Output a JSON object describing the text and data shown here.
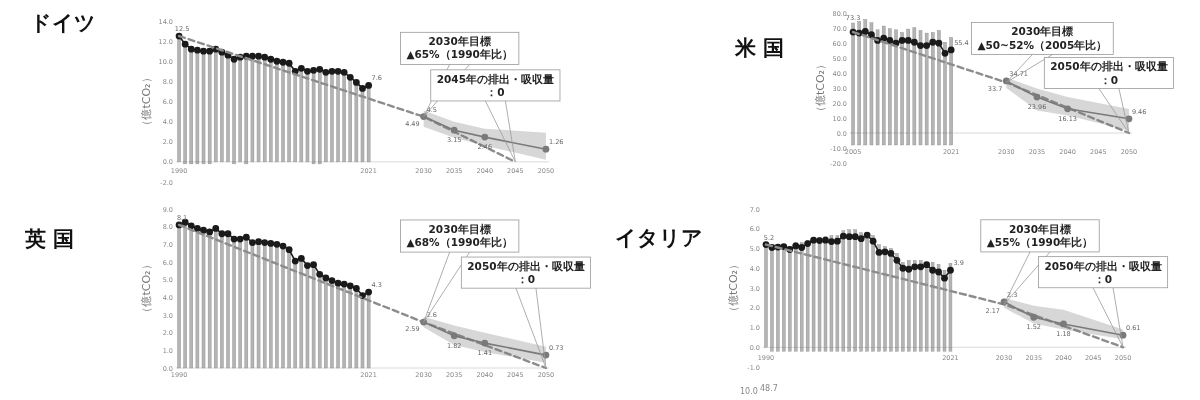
{
  "chart_data": [
    {
      "type": "bar",
      "stacked": true,
      "title": "ドイツ",
      "ylabel": "（億tCO₂）",
      "xlim": [
        1989.5,
        2050.5
      ],
      "xticks": [
        1990,
        2021,
        2030,
        2035,
        2040,
        2045,
        2050
      ],
      "ylim": [
        -2,
        14
      ],
      "yticks": [
        {
          "value": -2,
          "label": "-2.0"
        },
        {
          "value": 0,
          "label": "0.0"
        },
        {
          "value": 2,
          "label": "2.0"
        },
        {
          "value": 4,
          "label": "4.0"
        },
        {
          "value": 6,
          "label": "6.0"
        },
        {
          "value": 8,
          "label": "8.0"
        },
        {
          "value": 10,
          "label": "10.0"
        },
        {
          "value": 12,
          "label": "12.0"
        },
        {
          "value": 14,
          "label": "14.0"
        }
      ],
      "x": [
        1990,
        1991,
        1992,
        1993,
        1994,
        1995,
        1996,
        1997,
        1998,
        1999,
        2000,
        2001,
        2002,
        2003,
        2004,
        2005,
        2006,
        2007,
        2008,
        2009,
        2010,
        2011,
        2012,
        2013,
        2014,
        2015,
        2016,
        2017,
        2018,
        2019,
        2020,
        2021
      ],
      "series": [
        {
          "type": "bar",
          "color": "#b4b4b4",
          "values": [
            12.5,
            11.7,
            11.2,
            11.1,
            11.0,
            11.0,
            11.2,
            10.9,
            10.6,
            10.2,
            10.4,
            10.5,
            10.5,
            10.5,
            10.4,
            10.2,
            10.0,
            9.9,
            9.8,
            9.0,
            9.3,
            9.0,
            9.1,
            9.2,
            8.9,
            9.0,
            9.0,
            8.9,
            8.4,
            7.9,
            7.3,
            7.6
          ]
        },
        {
          "type": "bar",
          "color": "#b4b4b4",
          "values": [
            null,
            -0.2,
            -0.2,
            -0.2,
            -0.2,
            -0.2,
            null,
            null,
            null,
            -0.2,
            null,
            -0.2,
            null,
            null,
            null,
            null,
            null,
            null,
            null,
            null,
            null,
            null,
            -0.2,
            -0.2,
            null,
            null,
            null,
            null,
            null,
            null,
            null,
            null
          ]
        },
        {
          "type": "line",
          "color": "#1a1a1a",
          "marker": "circle",
          "values": [
            12.5,
            11.7,
            11.2,
            11.1,
            11.0,
            11.0,
            11.2,
            10.9,
            10.6,
            10.2,
            10.4,
            10.5,
            10.5,
            10.5,
            10.4,
            10.2,
            10.0,
            9.9,
            9.8,
            9.0,
            9.3,
            9.0,
            9.1,
            9.2,
            8.9,
            9.0,
            9.0,
            8.9,
            8.4,
            7.9,
            7.3,
            7.6
          ],
          "value_labels": [
            "12.5",
            null,
            null,
            null,
            null,
            null,
            null,
            null,
            null,
            null,
            null,
            null,
            null,
            null,
            null,
            null,
            null,
            null,
            null,
            null,
            null,
            null,
            null,
            null,
            null,
            null,
            null,
            null,
            null,
            null,
            null,
            "7.6"
          ]
        },
        {
          "type": "line",
          "color": "#8c8c8c",
          "line_style": "dashed",
          "x": [
            1990,
            2030,
            2045
          ],
          "values": [
            12.5,
            4.49,
            0
          ],
          "value_labels": [
            null,
            "4.49",
            null
          ]
        },
        {
          "type": "line",
          "color": "#7a7a7a",
          "marker": "circle",
          "x": [
            2030,
            2035,
            2040,
            2050
          ],
          "values": [
            4.5,
            3.15,
            2.46,
            1.26
          ],
          "lower": [
            3.5,
            2.4,
            1.6,
            0.2
          ],
          "upper": [
            5.1,
            4.0,
            3.3,
            2.9
          ],
          "value_labels": [
            "4.5",
            "3.15",
            "2.46",
            "1.26"
          ]
        }
      ],
      "annotations": [
        "2030年目標\n▲65%（1990年比）",
        "2045年の排出・吸収量：0"
      ]
    },
    {
      "type": "bar",
      "stacked": true,
      "title": "米 国",
      "ylabel": "（億tCO₂）",
      "xlim": [
        2004.5,
        2050.5
      ],
      "xticks": [
        2005,
        2021,
        2030,
        2035,
        2040,
        2045,
        2050
      ],
      "ylim": [
        -20,
        80
      ],
      "yticks": [
        {
          "value": -20,
          "label": "-20.0"
        },
        {
          "value": -10,
          "label": "-10.0"
        },
        {
          "value": 0,
          "label": "0.0"
        },
        {
          "value": 10,
          "label": "10.0"
        },
        {
          "value": 20,
          "label": "20.0"
        },
        {
          "value": 30,
          "label": "30.0"
        },
        {
          "value": 40,
          "label": "40.0"
        },
        {
          "value": 50,
          "label": "50.0"
        },
        {
          "value": 60,
          "label": "60.0"
        },
        {
          "value": 70,
          "label": "70.0"
        },
        {
          "value": 80,
          "label": "80.0"
        }
      ],
      "x": [
        2005,
        2006,
        2007,
        2008,
        2009,
        2010,
        2011,
        2012,
        2013,
        2014,
        2015,
        2016,
        2017,
        2018,
        2019,
        2020,
        2021
      ],
      "series": [
        {
          "type": "bar",
          "color": "#b4b4b4",
          "values": [
            73.3,
            74.4,
            75.6,
            73.5,
            68.8,
            71.3,
            69.5,
            68.8,
            67.0,
            69.3,
            70.2,
            68.4,
            66.6,
            67.0,
            68.4,
            60.5,
            63.7
          ],
          "value_labels": [
            "73.3",
            null,
            null,
            null,
            null,
            null,
            null,
            null,
            null,
            null,
            null,
            null,
            null,
            null,
            null,
            null,
            null
          ]
        },
        {
          "type": "bar",
          "color": "#b4b4b4",
          "values": [
            -8,
            -8,
            -8,
            -8,
            -8,
            -8,
            -8,
            -8,
            -8,
            -8,
            -8,
            -8,
            -8,
            -8,
            -8,
            -8,
            -8
          ]
        },
        {
          "type": "line",
          "color": "#1a1a1a",
          "marker": "circle",
          "values": [
            67.3,
            66.6,
            67.7,
            65.5,
            61.7,
            63.2,
            61.7,
            59.9,
            61.7,
            61.7,
            60.5,
            58.3,
            58.3,
            60.5,
            59.9,
            53.1,
            55.4
          ],
          "value_labels": [
            null,
            null,
            null,
            null,
            null,
            null,
            null,
            null,
            null,
            null,
            null,
            null,
            null,
            null,
            null,
            null,
            "55.4"
          ]
        },
        {
          "type": "line",
          "color": "#8c8c8c",
          "line_style": "dashed",
          "x": [
            2005,
            2030,
            2050
          ],
          "values": [
            67.3,
            33.7,
            0
          ],
          "value_labels": [
            null,
            "33.7",
            null
          ]
        },
        {
          "type": "line",
          "color": "#7a7a7a",
          "marker": "circle",
          "x": [
            2030,
            2035,
            2040,
            2050
          ],
          "values": [
            34.71,
            23.96,
            16.13,
            9.46
          ],
          "lower": [
            30,
            15,
            11.7,
            1.6
          ],
          "upper": [
            37,
            29.6,
            24,
            16
          ],
          "value_labels": [
            "34.71",
            "23.96",
            "16.13",
            "9.46"
          ]
        }
      ],
      "annotations": [
        "2030年目標\n▲50~52%（2005年比）",
        "2050年の排出・吸収量：0"
      ]
    },
    {
      "type": "bar",
      "title": "英 国",
      "ylabel": "（億tCO₂）",
      "xlim": [
        1989.5,
        2050.5
      ],
      "xticks": [
        1990,
        2021,
        2030,
        2035,
        2040,
        2045,
        2050
      ],
      "ylim": [
        0,
        9
      ],
      "yticks": [
        {
          "value": 0,
          "label": "0.0"
        },
        {
          "value": 1,
          "label": "1.0"
        },
        {
          "value": 2,
          "label": "2.0"
        },
        {
          "value": 3,
          "label": "3.0"
        },
        {
          "value": 4,
          "label": "4.0"
        },
        {
          "value": 5,
          "label": "5.0"
        },
        {
          "value": 6,
          "label": "6.0"
        },
        {
          "value": 7,
          "label": "7.0"
        },
        {
          "value": 8,
          "label": "8.0"
        },
        {
          "value": 9,
          "label": "9.0"
        }
      ],
      "x": [
        1990,
        1991,
        1992,
        1993,
        1994,
        1995,
        1996,
        1997,
        1998,
        1999,
        2000,
        2001,
        2002,
        2003,
        2004,
        2005,
        2006,
        2007,
        2008,
        2009,
        2010,
        2011,
        2012,
        2013,
        2014,
        2015,
        2016,
        2017,
        2018,
        2019,
        2020,
        2021
      ],
      "series": [
        {
          "type": "bar",
          "color": "#b4b4b4",
          "values": [
            8.1,
            8.25,
            8.05,
            7.9,
            7.8,
            7.7,
            7.9,
            7.6,
            7.6,
            7.3,
            7.3,
            7.4,
            7.1,
            7.15,
            7.1,
            7.05,
            7.0,
            6.9,
            6.7,
            6.05,
            6.2,
            5.8,
            5.85,
            5.3,
            5.1,
            4.95,
            4.8,
            4.75,
            4.65,
            4.5,
            4.1,
            4.3
          ]
        },
        {
          "type": "line",
          "color": "#1a1a1a",
          "marker": "circle",
          "values": [
            8.1,
            8.25,
            8.05,
            7.9,
            7.8,
            7.7,
            7.9,
            7.6,
            7.6,
            7.3,
            7.3,
            7.4,
            7.1,
            7.15,
            7.1,
            7.05,
            7.0,
            6.9,
            6.7,
            6.05,
            6.2,
            5.8,
            5.85,
            5.3,
            5.1,
            4.95,
            4.8,
            4.75,
            4.65,
            4.5,
            4.1,
            4.3
          ],
          "value_labels": [
            "8.1",
            null,
            null,
            null,
            null,
            null,
            null,
            null,
            null,
            null,
            null,
            null,
            null,
            null,
            null,
            null,
            null,
            null,
            null,
            null,
            null,
            null,
            null,
            null,
            null,
            null,
            null,
            null,
            null,
            null,
            null,
            "4.3"
          ]
        },
        {
          "type": "line",
          "color": "#8c8c8c",
          "line_style": "dashed",
          "x": [
            1990,
            2030,
            2050
          ],
          "values": [
            8.1,
            2.59,
            0
          ],
          "value_labels": [
            null,
            "2.59",
            null
          ]
        },
        {
          "type": "line",
          "color": "#7a7a7a",
          "marker": "circle",
          "x": [
            2030,
            2035,
            2040,
            2050
          ],
          "values": [
            2.6,
            1.82,
            1.41,
            0.73
          ],
          "lower": [
            2.3,
            1.3,
            0.9,
            0.3
          ],
          "upper": [
            2.9,
            2.4,
            2.0,
            1.2
          ],
          "value_labels": [
            "2.6",
            "1.82",
            "1.41",
            "0.73"
          ]
        }
      ],
      "annotations": [
        "2030年目標\n▲68%（1990年比）",
        "2050年の排出・吸収量：0"
      ]
    },
    {
      "type": "bar",
      "stacked": true,
      "title": "イタリア",
      "ylabel": "（億tCO₂）",
      "xlim": [
        1989.5,
        2050.5
      ],
      "xticks": [
        1990,
        2021,
        2030,
        2035,
        2040,
        2045,
        2050
      ],
      "ylim": [
        -1,
        7
      ],
      "yticks": [
        {
          "value": -1,
          "label": "-1.0"
        },
        {
          "value": 0,
          "label": "0.0"
        },
        {
          "value": 1,
          "label": "1.0"
        },
        {
          "value": 2,
          "label": "2.0"
        },
        {
          "value": 3,
          "label": "3.0"
        },
        {
          "value": 4,
          "label": "4.0"
        },
        {
          "value": 5,
          "label": "5.0"
        },
        {
          "value": 6,
          "label": "6.0"
        },
        {
          "value": 7,
          "label": "7.0"
        }
      ],
      "x": [
        1990,
        1991,
        1992,
        1993,
        1994,
        1995,
        1996,
        1997,
        1998,
        1999,
        2000,
        2001,
        2002,
        2003,
        2004,
        2005,
        2006,
        2007,
        2008,
        2009,
        2010,
        2011,
        2012,
        2013,
        2014,
        2015,
        2016,
        2017,
        2018,
        2019,
        2020,
        2021
      ],
      "series": [
        {
          "type": "bar",
          "color": "#b4b4b4",
          "values": [
            5.2,
            5.1,
            5.1,
            5.15,
            5.1,
            5.3,
            5.3,
            5.4,
            5.55,
            5.55,
            5.6,
            5.65,
            5.65,
            5.9,
            5.95,
            5.95,
            5.8,
            5.8,
            5.65,
            5.2,
            5.1,
            5.0,
            4.75,
            4.3,
            4.4,
            4.4,
            4.4,
            4.3,
            4.3,
            4.2,
            3.9,
            4.25
          ]
        },
        {
          "type": "bar",
          "color": "#b4b4b4",
          "values": [
            null,
            -0.2,
            -0.2,
            -0.2,
            -0.2,
            -0.2,
            -0.2,
            -0.2,
            -0.2,
            -0.2,
            -0.2,
            -0.2,
            -0.2,
            -0.2,
            -0.2,
            -0.2,
            -0.2,
            -0.2,
            -0.2,
            -0.2,
            -0.2,
            -0.2,
            -0.2,
            -0.2,
            -0.2,
            -0.2,
            -0.2,
            -0.2,
            -0.2,
            -0.2,
            -0.2,
            -0.2
          ]
        },
        {
          "type": "line",
          "color": "#1a1a1a",
          "marker": "circle",
          "values": [
            5.2,
            5.05,
            5.07,
            5.1,
            4.95,
            5.13,
            5.05,
            5.25,
            5.42,
            5.4,
            5.42,
            5.35,
            5.37,
            5.63,
            5.6,
            5.6,
            5.5,
            5.68,
            5.37,
            4.8,
            4.83,
            4.75,
            4.4,
            4.0,
            3.95,
            4.07,
            4.07,
            4.18,
            3.9,
            3.81,
            3.5,
            3.9
          ],
          "value_labels": [
            "5.2",
            null,
            null,
            null,
            null,
            null,
            null,
            null,
            null,
            null,
            null,
            null,
            null,
            null,
            null,
            null,
            null,
            null,
            null,
            null,
            null,
            null,
            null,
            null,
            null,
            null,
            null,
            null,
            null,
            null,
            null,
            "3.9"
          ]
        },
        {
          "type": "line",
          "color": "#8c8c8c",
          "line_style": "dashed",
          "x": [
            1990,
            2030,
            2050
          ],
          "values": [
            5.2,
            2.17,
            0
          ],
          "value_labels": [
            null,
            "2.17",
            null
          ]
        },
        {
          "type": "line",
          "color": "#7a7a7a",
          "marker": "circle",
          "x": [
            2030,
            2035,
            2040,
            2050
          ],
          "values": [
            2.3,
            1.52,
            1.18,
            0.61
          ],
          "lower": [
            2.0,
            1.2,
            0.9,
            0.4
          ],
          "upper": [
            2.5,
            2.1,
            1.9,
            0.9
          ],
          "value_labels": [
            "2.3",
            "1.52",
            "1.18",
            "0.61"
          ]
        }
      ],
      "annotations": [
        "2030年目標\n▲55%（1990年比）",
        "2050年の排出・吸収量：0"
      ]
    },
    {
      "type": "other",
      "annotations": [
        "10.0",
        "48.7"
      ]
    }
  ]
}
